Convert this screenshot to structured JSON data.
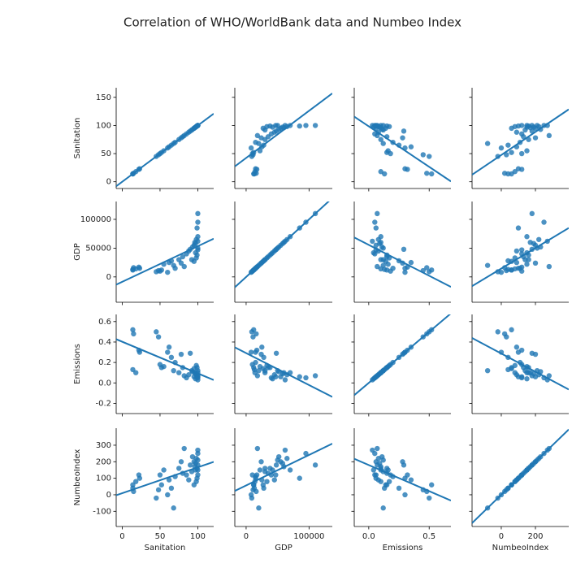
{
  "chart_data": {
    "type": "pairplot",
    "title": "Correlation of WHO/WorldBank data and Numbeo Index",
    "color": "#1f77b4",
    "variables": [
      {
        "name": "Sanitation",
        "xlim": [
          -8,
          121
        ],
        "xticks": [
          0,
          50,
          100
        ],
        "ylim": [
          -12,
          167
        ],
        "yticks": [
          0,
          50,
          100,
          150
        ]
      },
      {
        "name": "GDP",
        "xlim": [
          -18000,
          137000
        ],
        "xticks": [
          0,
          100000
        ],
        "ylim": [
          -44000,
          131000
        ],
        "yticks": [
          0,
          50000,
          100000
        ]
      },
      {
        "name": "Emissions",
        "xlim": [
          -0.12,
          0.68
        ],
        "xticks": [
          {
            "value": 0,
            "label": "0.0"
          },
          0.5
        ],
        "ylim": [
          -0.3,
          0.67
        ],
        "yticks": [
          -0.2,
          {
            "value": 0,
            "label": "0.0"
          },
          0.2,
          0.4,
          0.6
        ]
      },
      {
        "name": "NumbeoIndex",
        "xlim": [
          -171,
          395
        ],
        "xticks": [
          0,
          200
        ],
        "ylim": [
          -192,
          403
        ],
        "yticks": [
          -100,
          0,
          100,
          200,
          300
        ]
      }
    ],
    "observations": [
      [
        14,
        12000,
        0.52,
        60
      ],
      [
        15,
        16000,
        0.48,
        20
      ],
      [
        22,
        17000,
        0.32,
        120
      ],
      [
        23,
        15000,
        0.3,
        100
      ],
      [
        14,
        13000,
        0.13,
        40
      ],
      [
        18,
        14000,
        0.1,
        80
      ],
      [
        45,
        9000,
        0.5,
        -20
      ],
      [
        48,
        11000,
        0.45,
        30
      ],
      [
        50,
        10000,
        0.18,
        120
      ],
      [
        52,
        12000,
        0.15,
        60
      ],
      [
        55,
        22000,
        0.16,
        150
      ],
      [
        60,
        8000,
        0.3,
        0
      ],
      [
        62,
        25000,
        0.35,
        90
      ],
      [
        65,
        28000,
        0.25,
        40
      ],
      [
        68,
        20000,
        0.12,
        -80
      ],
      [
        70,
        15000,
        0.2,
        110
      ],
      [
        75,
        30000,
        0.1,
        160
      ],
      [
        78,
        24000,
        0.28,
        200
      ],
      [
        80,
        35000,
        0.15,
        130
      ],
      [
        82,
        18000,
        0.07,
        280
      ],
      [
        85,
        40000,
        0.05,
        120
      ],
      [
        88,
        45000,
        0.08,
        90
      ],
      [
        90,
        48000,
        0.29,
        180
      ],
      [
        92,
        30000,
        0.12,
        140
      ],
      [
        95,
        55000,
        0.06,
        200
      ],
      [
        96,
        60000,
        0.1,
        170
      ],
      [
        97,
        42000,
        0.04,
        150
      ],
      [
        98,
        65000,
        0.08,
        220
      ],
      [
        99,
        85000,
        0.06,
        100
      ],
      [
        100,
        110000,
        0.07,
        180
      ],
      [
        100,
        95000,
        0.05,
        250
      ],
      [
        100,
        50000,
        0.12,
        210
      ],
      [
        99,
        38000,
        0.15,
        160
      ],
      [
        98,
        33000,
        0.17,
        80
      ],
      [
        100,
        62000,
        0.03,
        270
      ],
      [
        97,
        58000,
        0.09,
        190
      ],
      [
        95,
        27000,
        0.14,
        60
      ],
      [
        93,
        52000,
        0.11,
        230
      ],
      [
        100,
        47000,
        0.06,
        120
      ],
      [
        100,
        70000,
        0.1,
        150
      ]
    ]
  }
}
